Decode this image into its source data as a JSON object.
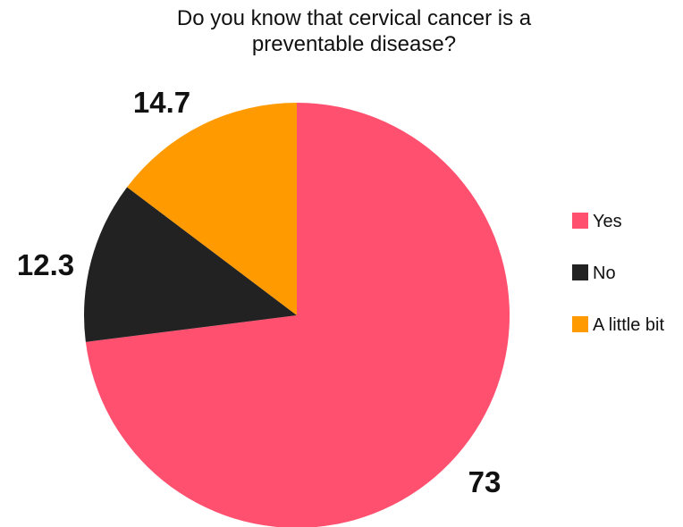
{
  "chart_data": {
    "type": "pie",
    "title_lines": [
      "Do you know that cervical cancer is a",
      "preventable disease?"
    ],
    "categories": [
      "Yes",
      "No",
      "A little bit"
    ],
    "values": [
      73,
      12.3,
      14.7
    ],
    "data_labels": [
      "73",
      "12.3",
      "14.7"
    ],
    "colors": [
      "#ff506f",
      "#222222",
      "#ff9a00"
    ],
    "legend_position": "right",
    "start_angle": "12 o'clock",
    "direction": "clockwise"
  }
}
